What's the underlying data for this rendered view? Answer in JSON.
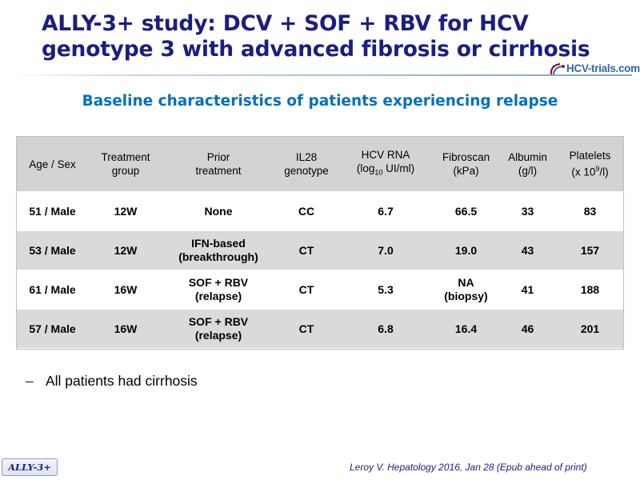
{
  "slide": {
    "title": "ALLY-3+ study: DCV + SOF + RBV for HCV genotype 3 with advanced fibrosis or cirrhosis",
    "logo_text": "HCV-trials.com",
    "subtitle": "Baseline characteristics of patients experiencing relapse",
    "table": {
      "headers": [
        {
          "line1": "Age / Sex",
          "line2": ""
        },
        {
          "line1": "Treatment",
          "line2": "group"
        },
        {
          "line1": "Prior",
          "line2": "treatment"
        },
        {
          "line1": "IL28",
          "line2": "genotype"
        },
        {
          "line1": "HCV RNA",
          "line2_pre": "(log",
          "line2_sub": "10",
          "line2_post": " UI/ml)"
        },
        {
          "line1": "Fibroscan",
          "line2": "(kPa)"
        },
        {
          "line1": "Albumin",
          "line2": "(g/l)"
        },
        {
          "line1": "Platelets",
          "line2_pre": "(x 10",
          "line2_sup": "9",
          "line2_post": "/l)"
        }
      ],
      "rows": [
        {
          "age_sex": "51 / Male",
          "group": "12W",
          "prior_1": "None",
          "prior_2": "",
          "il28": "CC",
          "hcv_rna": "6.7",
          "fibroscan_1": "66.5",
          "fibroscan_2": "",
          "albumin": "33",
          "platelets": "83"
        },
        {
          "age_sex": "53 / Male",
          "group": "12W",
          "prior_1": "IFN-based",
          "prior_2": "(breakthrough)",
          "il28": "CT",
          "hcv_rna": "7.0",
          "fibroscan_1": "19.0",
          "fibroscan_2": "",
          "albumin": "43",
          "platelets": "157"
        },
        {
          "age_sex": "61 / Male",
          "group": "16W",
          "prior_1": "SOF + RBV",
          "prior_2": "(relapse)",
          "il28": "CT",
          "hcv_rna": "5.3",
          "fibroscan_1": "NA",
          "fibroscan_2": "(biopsy)",
          "albumin": "41",
          "platelets": "188"
        },
        {
          "age_sex": "57 / Male",
          "group": "16W",
          "prior_1": "SOF + RBV",
          "prior_2": "(relapse)",
          "il28": "CT",
          "hcv_rna": "6.8",
          "fibroscan_1": "16.4",
          "fibroscan_2": "",
          "albumin": "46",
          "platelets": "201"
        }
      ]
    },
    "bullet_dash": "–",
    "bullet": "All patients had cirrhosis",
    "badge": "ALLY-3+",
    "citation": "Leroy V. Hepatology 2016, Jan 28 (Epub ahead of print)",
    "colors": {
      "title": "#1a1e82",
      "subtitle": "#0070c0",
      "header_bg": "#d3d3d3",
      "row_alt_bg": "#dadada"
    }
  }
}
